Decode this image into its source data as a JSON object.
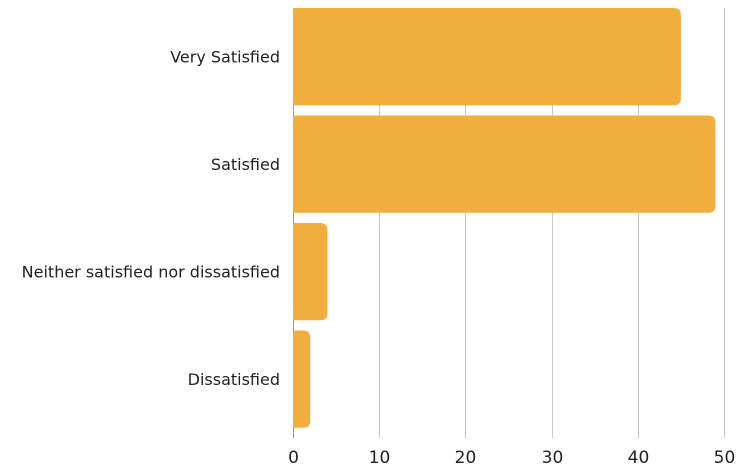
{
  "chart_data": {
    "type": "bar",
    "orientation": "horizontal",
    "categories": [
      "Very Satisfied",
      "Satisfied",
      "Neither satisfied nor dissatisfied",
      "Dissatisfied"
    ],
    "values": [
      45,
      49,
      4,
      2
    ],
    "title": "",
    "xlabel": "",
    "ylabel": "",
    "xlim": [
      0,
      50
    ],
    "x_ticks": [
      "0",
      "10",
      "20",
      "30",
      "40",
      "50"
    ],
    "grid": "vertical",
    "legend": "none",
    "bar_color": "#F2AE3D"
  }
}
